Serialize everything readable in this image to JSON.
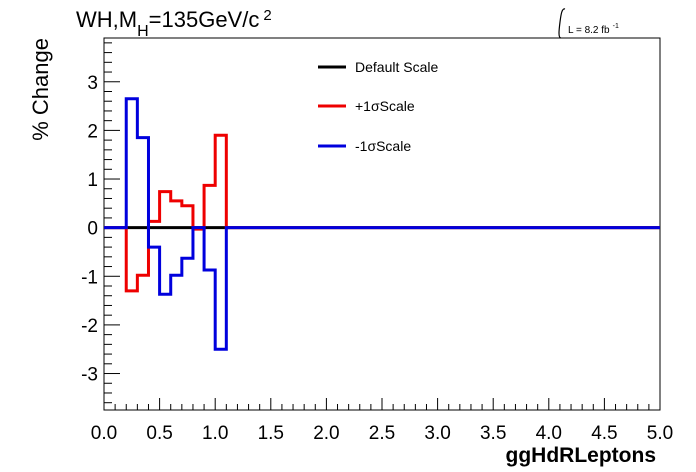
{
  "chart_data": {
    "type": "line",
    "title": "WH,M",
    "title_subscript": "H",
    "title_mass": "=135GeV/c",
    "title_superscript": "2",
    "luminosity_label": "L = 8.2 fb",
    "luminosity_superscript": "-1",
    "xlabel": "ggHdRLeptons",
    "ylabel": "% Change",
    "xlim": [
      0,
      5
    ],
    "ylim": [
      -3.75,
      3.9
    ],
    "x_ticks": [
      "0.0",
      "0.5",
      "1.0",
      "1.5",
      "2.0",
      "2.5",
      "3.0",
      "3.5",
      "4.0",
      "4.5",
      "5.0"
    ],
    "y_ticks": [
      "-3",
      "-2",
      "-1",
      "0",
      "1",
      "2",
      "3"
    ],
    "grid": false,
    "legend_position": "top-center",
    "bin_edges": [
      0,
      0.1,
      0.2,
      0.3,
      0.4,
      0.5,
      0.6,
      0.7,
      0.8,
      0.9,
      1.0,
      1.1,
      1.2,
      1.3,
      1.4,
      1.5,
      1.6,
      1.7,
      1.8,
      1.9,
      2.0,
      2.1,
      2.2,
      2.3,
      2.4,
      2.5,
      2.6,
      2.7,
      2.8,
      2.9,
      3.0,
      3.1,
      3.2,
      3.3,
      3.4,
      3.5,
      3.6,
      3.7,
      3.8,
      3.9,
      4.0,
      4.1,
      4.2,
      4.3,
      4.4,
      4.5,
      4.6,
      4.7,
      4.8,
      4.9,
      5.0
    ],
    "series": [
      {
        "name": "Default Scale",
        "color": "#000000",
        "values": [
          0,
          0,
          0,
          0,
          0,
          0,
          0,
          0,
          0,
          0,
          0,
          0,
          0,
          0,
          0,
          0,
          0,
          0,
          0,
          0,
          0,
          0,
          0,
          0,
          0,
          0,
          0,
          0,
          0,
          0,
          0,
          0,
          0,
          0,
          0,
          0,
          0,
          0,
          0,
          0,
          0,
          0,
          0,
          0,
          0,
          0,
          0,
          0,
          0,
          0
        ]
      },
      {
        "name": "+1σScale",
        "color": "#ee0000",
        "values": [
          0,
          0,
          -1.3,
          -0.98,
          0.13,
          0.74,
          0.55,
          0.45,
          -0.03,
          0.87,
          1.9,
          0,
          0,
          0,
          0,
          0,
          0,
          0,
          0,
          0,
          0,
          0,
          0,
          0,
          0,
          0,
          0,
          0,
          0,
          0,
          0,
          0,
          0,
          0,
          0,
          0,
          0,
          0,
          0,
          0,
          0,
          0,
          0,
          0,
          0,
          0,
          0,
          0,
          0,
          0
        ]
      },
      {
        "name": "-1σScale",
        "color": "#0000dd",
        "values": [
          0,
          0,
          2.65,
          1.85,
          -0.4,
          -1.37,
          -0.98,
          -0.63,
          0.0,
          -0.87,
          -2.5,
          0,
          0,
          0,
          0,
          0,
          0,
          0,
          0,
          0,
          0,
          0,
          0,
          0,
          0,
          0,
          0,
          0,
          0,
          0,
          0,
          0,
          0,
          0,
          0,
          0,
          0,
          0,
          0,
          0,
          0,
          0,
          0,
          0,
          0,
          0,
          0,
          0,
          0,
          0
        ]
      }
    ]
  }
}
